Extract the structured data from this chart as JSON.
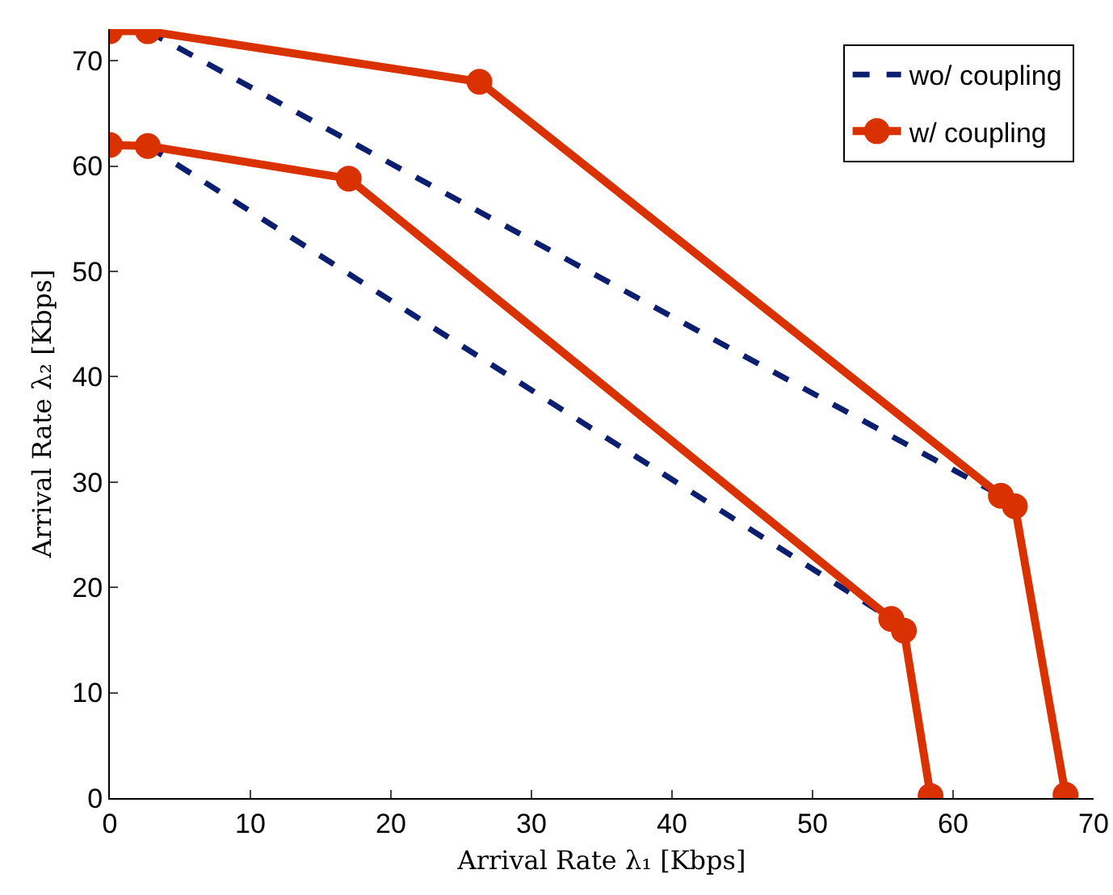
{
  "chart_data": {
    "type": "line",
    "xlabel": "Arrival Rate λ₁ [Kbps]",
    "ylabel": "Arrival Rate λ₂ [Kbps]",
    "xlim": [
      0,
      70
    ],
    "ylim": [
      0,
      73
    ],
    "xticks": [
      0,
      10,
      20,
      30,
      40,
      50,
      60,
      70
    ],
    "yticks": [
      0,
      10,
      20,
      30,
      40,
      50,
      60,
      70
    ],
    "grid": false,
    "legend": "top right",
    "series": [
      {
        "name": "wo/ coupling",
        "color": "#0b1f6e",
        "line_style": "dashed",
        "marker": "none",
        "x": [
          2.7,
          63.4
        ],
        "values": [
          72.8,
          28.7
        ]
      },
      {
        "color": "#0b1f6e",
        "line_style": "dashed",
        "marker": "none",
        "x": [
          2.7,
          55.6
        ],
        "values": [
          61.9,
          17
        ]
      },
      {
        "name": "w/ coupling",
        "color": "#d93200",
        "line_style": "solid",
        "marker": "circle",
        "x": [
          0,
          2.7,
          26.3,
          63.4,
          64.4,
          68
        ],
        "values": [
          72.8,
          72.8,
          68,
          28.7,
          27.7,
          0.3
        ]
      },
      {
        "color": "#d93200",
        "line_style": "solid",
        "marker": "circle",
        "x": [
          0,
          2.7,
          17,
          55.6,
          56.5,
          58.4
        ],
        "values": [
          62,
          61.9,
          58.8,
          17,
          15.9,
          0.2
        ]
      }
    ]
  }
}
